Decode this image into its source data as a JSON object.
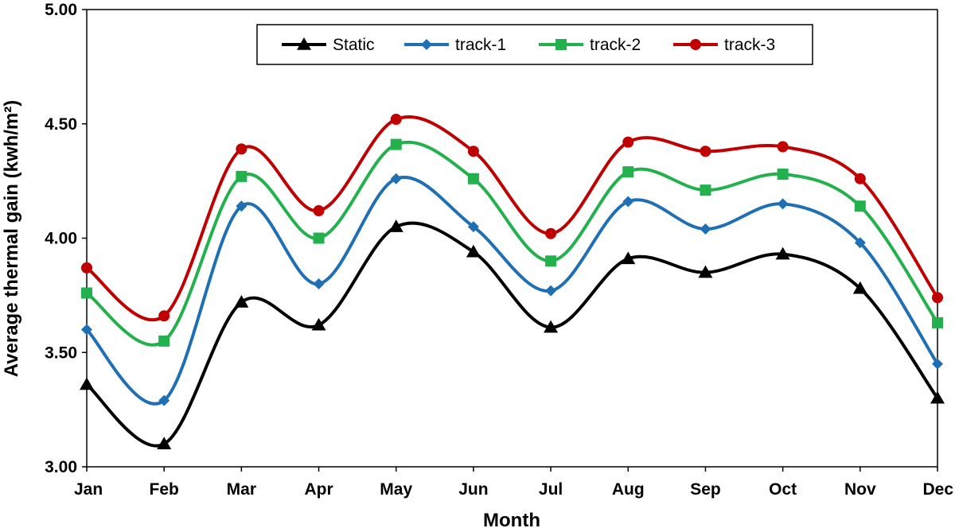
{
  "chart_data": {
    "type": "line",
    "xlabel": "Month",
    "ylabel": "Average thermal gain  (kwh/m²)",
    "categories": [
      "Jan",
      "Feb",
      "Mar",
      "Apr",
      "May",
      "Jun",
      "Jul",
      "Aug",
      "Sep",
      "Oct",
      "Nov",
      "Dec"
    ],
    "ylim": [
      3.0,
      5.0
    ],
    "yticks": [
      "3.00",
      "3.50",
      "4.00",
      "4.50",
      "5.00"
    ],
    "yticks_values": [
      3.0,
      3.5,
      4.0,
      4.5,
      5.0
    ],
    "grid": false,
    "smooth": true,
    "legend_position": "top-center",
    "series": [
      {
        "name": "Static",
        "color": "#000000",
        "marker": "triangle",
        "values": [
          3.36,
          3.1,
          3.72,
          3.62,
          4.05,
          3.94,
          3.61,
          3.91,
          3.85,
          3.93,
          3.78,
          3.3
        ]
      },
      {
        "name": "track-1",
        "color": "#1f6fb5",
        "marker": "diamond",
        "values": [
          3.6,
          3.29,
          4.14,
          3.8,
          4.26,
          4.05,
          3.77,
          4.16,
          4.04,
          4.15,
          3.98,
          3.45
        ]
      },
      {
        "name": "track-2",
        "color": "#22b14c",
        "marker": "square",
        "values": [
          3.76,
          3.55,
          4.27,
          4.0,
          4.41,
          4.26,
          3.9,
          4.29,
          4.21,
          4.28,
          4.14,
          3.63
        ]
      },
      {
        "name": "track-3",
        "color": "#c00000",
        "marker": "circle",
        "values": [
          3.87,
          3.66,
          4.39,
          4.12,
          4.52,
          4.38,
          4.02,
          4.42,
          4.38,
          4.4,
          4.26,
          3.74
        ]
      }
    ]
  }
}
